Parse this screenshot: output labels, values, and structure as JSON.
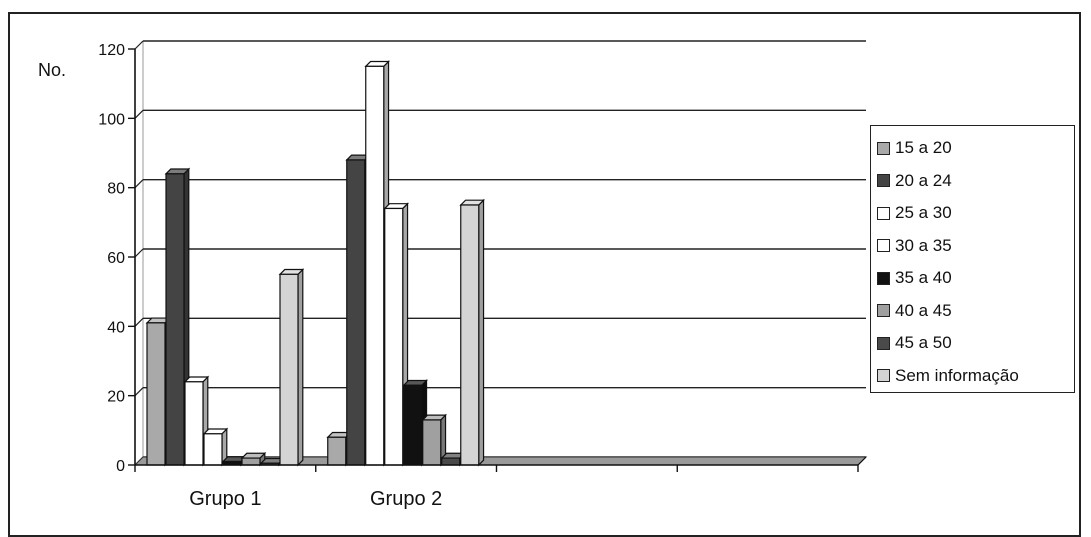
{
  "chart_data": {
    "type": "bar",
    "ylabel": "No.",
    "ylim": [
      0,
      120
    ],
    "yticks": [
      "0",
      "20",
      "40",
      "60",
      "80",
      "100",
      "120"
    ],
    "grid": true,
    "legend_position": "right",
    "categories": [
      "Grupo 1",
      "Grupo 2",
      "",
      ""
    ],
    "series": [
      {
        "name": "15 a 20",
        "color": "#a9a9a9",
        "values": [
          41,
          8,
          0,
          0
        ]
      },
      {
        "name": "20 a 24",
        "color": "#444444",
        "values": [
          84,
          88,
          0,
          0
        ]
      },
      {
        "name": "25 a 30",
        "color": "#ffffff",
        "values": [
          24,
          115,
          0,
          0
        ]
      },
      {
        "name": "30 a 35",
        "color": "#ffffff",
        "values": [
          9,
          74,
          0,
          0
        ]
      },
      {
        "name": "35 a 40",
        "color": "#111111",
        "values": [
          1,
          23,
          0,
          0
        ]
      },
      {
        "name": "40 a 45",
        "color": "#a0a0a0",
        "values": [
          2,
          13,
          0,
          0
        ]
      },
      {
        "name": "45 a 50",
        "color": "#4a4a4a",
        "values": [
          0.5,
          2,
          0,
          0
        ]
      },
      {
        "name": "Sem informação",
        "color": "#d4d4d4",
        "values": [
          55,
          75,
          0,
          0
        ]
      }
    ]
  }
}
